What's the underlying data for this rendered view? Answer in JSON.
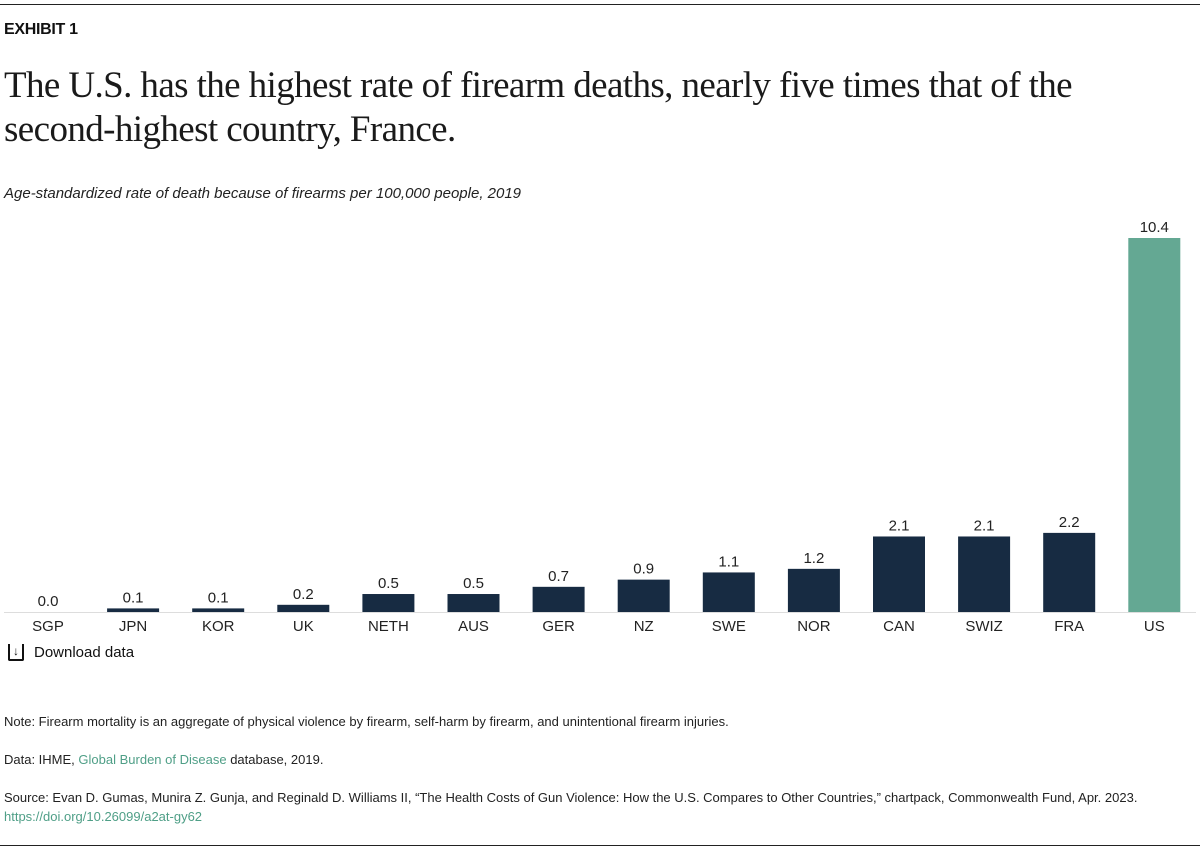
{
  "exhibit_label": "EXHIBIT 1",
  "title": "The U.S. has the highest rate of firearm deaths, nearly five times that of the second-highest country, France.",
  "subtitle": "Age-standardized rate of death because of firearms per 100,000 people, 2019",
  "download_label": "Download data",
  "download_icon": "download-icon",
  "note": "Note: Firearm mortality is an aggregate of physical violence by firearm, self-harm by firearm, and unintentional firearm injuries.",
  "data_source": {
    "prefix": "Data: IHME, ",
    "link": "Global Burden of Disease",
    "suffix": " database, 2019."
  },
  "source": {
    "text": "Source: Evan D. Gumas, Munira Z. Gunja, and Reginald D. Williams II, “The Health Costs of Gun Violence: How the U.S. Compares to Other Countries,” chartpack, Commonwealth Fund, Apr. 2023. ",
    "link": "https://doi.org/10.26099/a2at-gy62"
  },
  "colors": {
    "default_bar": "#172b42",
    "highlight_bar": "#64a893",
    "link": "#4f9f87"
  },
  "chart_data": {
    "type": "bar",
    "categories": [
      "SGP",
      "JPN",
      "KOR",
      "UK",
      "NETH",
      "AUS",
      "GER",
      "NZ",
      "SWE",
      "NOR",
      "CAN",
      "SWIZ",
      "FRA",
      "US"
    ],
    "values": [
      0.0,
      0.1,
      0.1,
      0.2,
      0.5,
      0.5,
      0.7,
      0.9,
      1.1,
      1.2,
      2.1,
      2.1,
      2.2,
      10.4
    ],
    "labels": [
      "0.0",
      "0.1",
      "0.1",
      "0.2",
      "0.5",
      "0.5",
      "0.7",
      "0.9",
      "1.1",
      "1.2",
      "2.1",
      "2.1",
      "2.2",
      "10.4"
    ],
    "highlight": "US",
    "ylim": [
      0,
      10.4
    ],
    "grid": false,
    "title": "",
    "xlabel": "",
    "ylabel": ""
  }
}
